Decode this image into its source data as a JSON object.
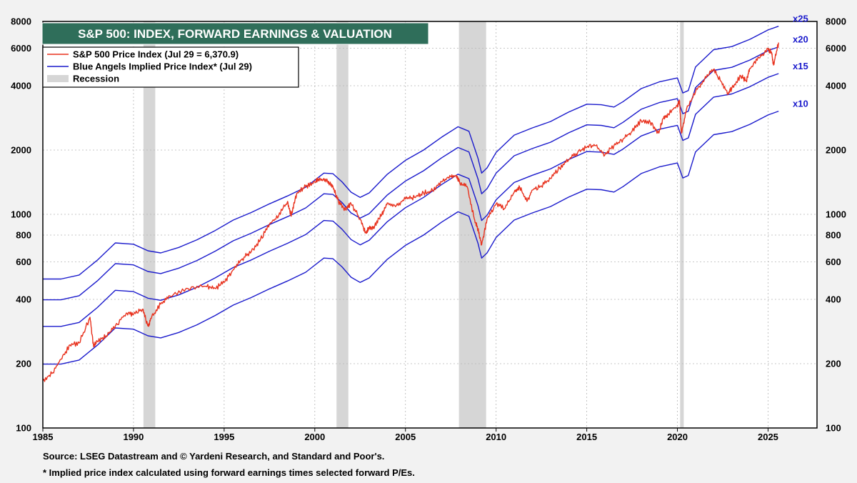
{
  "chart_data": {
    "type": "line",
    "title": "S&P 500: INDEX, FORWARD EARNINGS & VALUATION",
    "y_scale": "log",
    "ylim": [
      100,
      8000
    ],
    "xlim": [
      1985,
      2027.7
    ],
    "x_ticks": [
      "1985",
      "1990",
      "1995",
      "2000",
      "2005",
      "2010",
      "2015",
      "2020",
      "2025"
    ],
    "y_ticks": [
      "100",
      "200",
      "400",
      "600",
      "800",
      "1000",
      "2000",
      "4000",
      "6000",
      "8000"
    ],
    "legend": [
      {
        "label": "S&P 500 Price Index (Jul 29 = 6,370.9)",
        "color": "#e8321e"
      },
      {
        "label": "Blue Angels Implied Price Index* (Jul 29)",
        "color": "#1a1acc"
      },
      {
        "label": "Recession",
        "color": "#d6d6d6"
      }
    ],
    "recessions": [
      [
        1990.55,
        1991.2
      ],
      [
        2001.2,
        2001.85
      ],
      [
        2007.95,
        2009.45
      ],
      [
        2020.15,
        2020.35
      ]
    ],
    "sp500": {
      "name": "S&P 500 Price Index",
      "color": "#e8321e",
      "x": [
        1985.0,
        1985.5,
        1986.0,
        1986.5,
        1987.0,
        1987.6,
        1987.8,
        1988.0,
        1988.5,
        1989.0,
        1989.6,
        1990.0,
        1990.5,
        1990.8,
        1991.0,
        1991.5,
        1992.0,
        1993.0,
        1994.0,
        1994.5,
        1995.0,
        1995.5,
        1996.0,
        1996.5,
        1997.0,
        1997.5,
        1998.0,
        1998.5,
        1998.7,
        1999.0,
        1999.5,
        2000.0,
        2000.3,
        2000.7,
        2001.0,
        2001.3,
        2001.7,
        2002.0,
        2002.5,
        2002.8,
        2003.0,
        2003.3,
        2003.7,
        2004.0,
        2004.5,
        2005.0,
        2005.5,
        2006.0,
        2006.5,
        2007.0,
        2007.5,
        2007.8,
        2008.0,
        2008.4,
        2008.8,
        2009.0,
        2009.2,
        2009.5,
        2010.0,
        2010.5,
        2011.0,
        2011.3,
        2011.7,
        2012.0,
        2012.5,
        2013.0,
        2013.5,
        2014.0,
        2014.5,
        2015.0,
        2015.5,
        2016.0,
        2016.5,
        2017.0,
        2017.5,
        2018.0,
        2018.5,
        2018.97,
        2019.2,
        2019.5,
        2020.0,
        2020.12,
        2020.22,
        2020.5,
        2021.0,
        2021.5,
        2021.99,
        2022.4,
        2022.8,
        2023.0,
        2023.5,
        2023.8,
        2024.0,
        2024.5,
        2025.0,
        2025.2,
        2025.3,
        2025.58
      ],
      "values": [
        167,
        180,
        210,
        245,
        250,
        330,
        240,
        255,
        270,
        300,
        345,
        340,
        360,
        300,
        330,
        380,
        415,
        450,
        460,
        450,
        480,
        550,
        620,
        670,
        760,
        900,
        980,
        1150,
        980,
        1250,
        1350,
        1420,
        1470,
        1430,
        1350,
        1150,
        1050,
        1120,
        950,
        820,
        860,
        880,
        1000,
        1130,
        1100,
        1180,
        1200,
        1260,
        1290,
        1420,
        1500,
        1520,
        1400,
        1350,
        950,
        850,
        720,
        950,
        1120,
        1070,
        1270,
        1340,
        1150,
        1300,
        1360,
        1470,
        1650,
        1800,
        1950,
        2060,
        2100,
        1900,
        2100,
        2250,
        2450,
        2750,
        2700,
        2400,
        2800,
        2950,
        3250,
        3380,
        2400,
        3100,
        3750,
        4300,
        4770,
        4200,
        3650,
        3900,
        4450,
        4200,
        4800,
        5400,
        5950,
        5700,
        5000,
        6370.9
      ]
    },
    "implied": [
      {
        "name": "x25",
        "color": "#1a1acc",
        "x": [
          1985.0,
          1986.0,
          1987.0,
          1988.0,
          1989.0,
          1990.0,
          1990.8,
          1991.5,
          1992.5,
          1993.5,
          1994.5,
          1995.5,
          1996.5,
          1997.5,
          1998.5,
          1999.5,
          2000.5,
          2001.0,
          2001.5,
          2002.0,
          2002.5,
          2003.0,
          2004.0,
          2005.0,
          2006.0,
          2007.0,
          2007.9,
          2008.5,
          2009.0,
          2009.2,
          2009.5,
          2010.0,
          2011.0,
          2012.0,
          2013.0,
          2014.0,
          2015.0,
          2015.8,
          2016.5,
          2017.0,
          2018.0,
          2019.0,
          2020.0,
          2020.3,
          2020.6,
          2021.0,
          2022.0,
          2023.0,
          2024.0,
          2025.0,
          2025.58
        ],
        "values": [
          498,
          498,
          520,
          610,
          735,
          725,
          675,
          660,
          700,
          760,
          840,
          940,
          1020,
          1120,
          1220,
          1340,
          1560,
          1550,
          1420,
          1270,
          1200,
          1260,
          1540,
          1790,
          2000,
          2300,
          2570,
          2450,
          1830,
          1560,
          1650,
          1950,
          2350,
          2540,
          2720,
          3010,
          3280,
          3260,
          3180,
          3370,
          3880,
          4170,
          4350,
          3700,
          3800,
          4900,
          5900,
          6100,
          6600,
          7300,
          7600
        ]
      },
      {
        "name": "x20",
        "color": "#1a1acc",
        "x": [
          1985.0,
          1986.0,
          1987.0,
          1988.0,
          1989.0,
          1990.0,
          1990.8,
          1991.5,
          1992.5,
          1993.5,
          1994.5,
          1995.5,
          1996.5,
          1997.5,
          1998.5,
          1999.5,
          2000.5,
          2001.0,
          2001.5,
          2002.0,
          2002.5,
          2003.0,
          2004.0,
          2005.0,
          2006.0,
          2007.0,
          2007.9,
          2008.5,
          2009.0,
          2009.2,
          2009.5,
          2010.0,
          2011.0,
          2012.0,
          2013.0,
          2014.0,
          2015.0,
          2015.8,
          2016.5,
          2017.0,
          2018.0,
          2019.0,
          2020.0,
          2020.3,
          2020.6,
          2021.0,
          2022.0,
          2023.0,
          2024.0,
          2025.0,
          2025.58
        ],
        "values": [
          398,
          398,
          416,
          488,
          588,
          580,
          540,
          528,
          560,
          608,
          672,
          752,
          816,
          896,
          976,
          1072,
          1248,
          1240,
          1136,
          1016,
          960,
          1008,
          1232,
          1432,
          1600,
          1840,
          2056,
          1960,
          1464,
          1248,
          1320,
          1560,
          1880,
          2032,
          2176,
          2408,
          2624,
          2608,
          2544,
          2696,
          3104,
          3336,
          3480,
          2960,
          3040,
          3920,
          4720,
          4880,
          5280,
          5840,
          6080
        ]
      },
      {
        "name": "x15",
        "color": "#1a1acc",
        "x": [
          1985.0,
          1986.0,
          1987.0,
          1988.0,
          1989.0,
          1990.0,
          1990.8,
          1991.5,
          1992.5,
          1993.5,
          1994.5,
          1995.5,
          1996.5,
          1997.5,
          1998.5,
          1999.5,
          2000.5,
          2001.0,
          2001.5,
          2002.0,
          2002.5,
          2003.0,
          2004.0,
          2005.0,
          2006.0,
          2007.0,
          2007.9,
          2008.5,
          2009.0,
          2009.2,
          2009.5,
          2010.0,
          2011.0,
          2012.0,
          2013.0,
          2014.0,
          2015.0,
          2015.8,
          2016.5,
          2017.0,
          2018.0,
          2019.0,
          2020.0,
          2020.3,
          2020.6,
          2021.0,
          2022.0,
          2023.0,
          2024.0,
          2025.0,
          2025.58
        ],
        "values": [
          299,
          299,
          312,
          366,
          441,
          435,
          405,
          396,
          420,
          456,
          504,
          564,
          612,
          672,
          732,
          804,
          936,
          930,
          852,
          762,
          720,
          756,
          924,
          1074,
          1200,
          1380,
          1542,
          1470,
          1098,
          936,
          990,
          1170,
          1410,
          1524,
          1632,
          1806,
          1968,
          1956,
          1908,
          2022,
          2328,
          2502,
          2610,
          2220,
          2280,
          2940,
          3540,
          3660,
          3960,
          4380,
          4560
        ]
      },
      {
        "name": "x10",
        "color": "#1a1acc",
        "x": [
          1985.0,
          1986.0,
          1987.0,
          1988.0,
          1989.0,
          1990.0,
          1990.8,
          1991.5,
          1992.5,
          1993.5,
          1994.5,
          1995.5,
          1996.5,
          1997.5,
          1998.5,
          1999.5,
          2000.5,
          2001.0,
          2001.5,
          2002.0,
          2002.5,
          2003.0,
          2004.0,
          2005.0,
          2006.0,
          2007.0,
          2007.9,
          2008.5,
          2009.0,
          2009.2,
          2009.5,
          2010.0,
          2011.0,
          2012.0,
          2013.0,
          2014.0,
          2015.0,
          2015.8,
          2016.5,
          2017.0,
          2018.0,
          2019.0,
          2020.0,
          2020.3,
          2020.6,
          2021.0,
          2022.0,
          2023.0,
          2024.0,
          2025.0,
          2025.58
        ],
        "values": [
          199,
          199,
          208,
          244,
          294,
          290,
          270,
          264,
          280,
          304,
          336,
          376,
          408,
          448,
          488,
          536,
          624,
          620,
          568,
          508,
          480,
          504,
          616,
          716,
          800,
          920,
          1028,
          980,
          732,
          624,
          660,
          780,
          940,
          1016,
          1088,
          1204,
          1312,
          1304,
          1272,
          1348,
          1552,
          1668,
          1740,
          1480,
          1520,
          1960,
          2360,
          2440,
          2640,
          2920,
          3040
        ]
      }
    ],
    "multiplier_labels": [
      "x25",
      "x20",
      "x15",
      "x10"
    ]
  },
  "source_note": "Source: LSEG Datastream and © Yardeni Research, and Standard and Poor's.",
  "footnote": "* Implied price index calculated using forward earnings times selected forward P/Es."
}
